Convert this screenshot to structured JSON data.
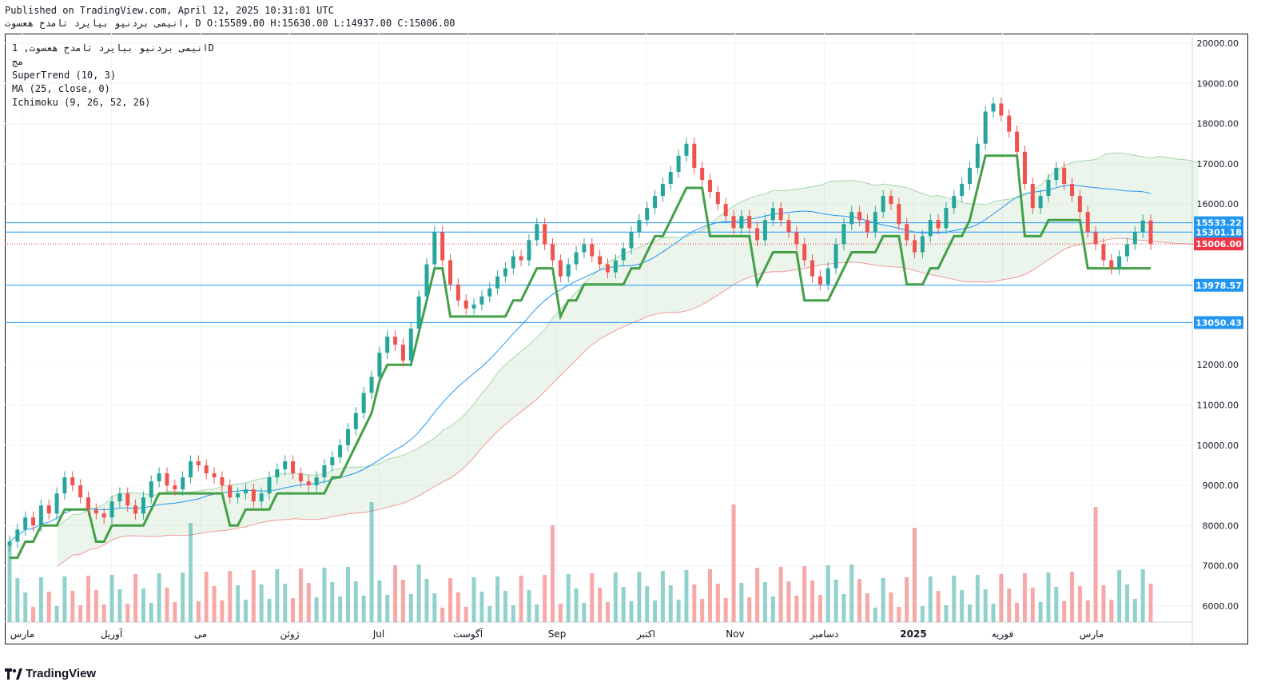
{
  "header": {
    "published": "Published on TradingView.com, April 12, 2025 10:31:01 UTC",
    "symbol_line": "انیمی بردنیو بیایرد تامدخ هعسوت, D O:15589.00 H:15630.00 L:14937.00 C:15006.00"
  },
  "legend": {
    "title": "انیمی بردنیو بیایرد تامدخ هعسوت, 1D",
    "subtitle": "مج",
    "indicators": [
      "SuperTrend (10, 3)",
      "MA (25, close, 0)",
      "Ichimoku (9, 26, 52, 26)"
    ]
  },
  "brand": "TradingView",
  "colors": {
    "up": "#26a69a",
    "down": "#ef5350",
    "supertrend_up": "#43a047",
    "supertrend_down": "#a04b4b",
    "ma": "#2196f3",
    "level": "#2196f3",
    "last_price": "#f23645"
  },
  "chart_data": {
    "type": "candlestick",
    "price_axis": {
      "ylim": [
        5600,
        20200
      ],
      "ticks": [
        "20000.00",
        "19000.00",
        "18000.00",
        "17000.00",
        "16000.00",
        "12000.00",
        "11000.00",
        "10000.00",
        "9000.00",
        "8000.00",
        "7000.00",
        "6000.00"
      ]
    },
    "time_axis": [
      "مارس",
      "آوریل",
      "می",
      "ژوئن",
      "Jul",
      "آگوست",
      "Sep",
      "اکتبر",
      "Nov",
      "دسامبر",
      "2025",
      "فوریه",
      "مارس"
    ],
    "levels": [
      {
        "label": "15533.22",
        "value": 15533.22
      },
      {
        "label": "15301.18",
        "value": 15301.18
      },
      {
        "label": "13978.57",
        "value": 13978.57
      },
      {
        "label": "13050.43",
        "value": 13050.43
      }
    ],
    "last_price": {
      "label": "15006.00",
      "value": 15006
    },
    "ohlc_last": {
      "open": 15589,
      "high": 15630,
      "low": 14937,
      "close": 15006
    },
    "close_series": [
      7600,
      7900,
      8200,
      8000,
      8500,
      8300,
      8800,
      9200,
      9000,
      8700,
      8400,
      8300,
      8200,
      8600,
      8800,
      8500,
      8300,
      8700,
      9100,
      9300,
      9000,
      8900,
      9200,
      9600,
      9500,
      9300,
      9200,
      9000,
      8700,
      8800,
      8900,
      8600,
      8800,
      9200,
      9400,
      9600,
      9300,
      9100,
      9000,
      9200,
      9500,
      9700,
      10000,
      10400,
      10800,
      11300,
      11700,
      12300,
      12700,
      12500,
      12100,
      12900,
      13700,
      14500,
      15300,
      14600,
      14000,
      13600,
      13400,
      13500,
      13700,
      13900,
      14200,
      14400,
      14700,
      14600,
      15100,
      15500,
      15000,
      14600,
      14200,
      14500,
      14800,
      15000,
      14700,
      14500,
      14300,
      14600,
      14900,
      15300,
      15600,
      15900,
      16200,
      16500,
      16800,
      17200,
      17500,
      16900,
      16600,
      16300,
      16000,
      15700,
      15400,
      15700,
      15400,
      15100,
      15600,
      15900,
      15600,
      15300,
      15000,
      14600,
      14200,
      14000,
      14400,
      15000,
      15500,
      15800,
      15600,
      15300,
      15800,
      16200,
      16000,
      15500,
      15100,
      14800,
      15200,
      15600,
      15400,
      15900,
      16200,
      16500,
      16900,
      17500,
      18300,
      18500,
      18200,
      17800,
      17300,
      16500,
      15900,
      16200,
      16600,
      16900,
      16500,
      16200,
      15800,
      15300,
      15000,
      14600,
      14400,
      14700,
      15000,
      15300,
      15589,
      15006
    ]
  }
}
